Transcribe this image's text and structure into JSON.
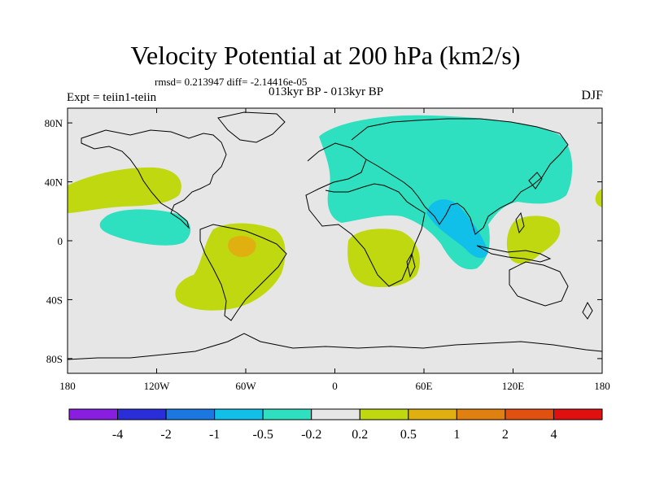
{
  "title": "Velocity Potential at 200 hPa (km2/s)",
  "stats": "rmsd= 0.213947  diff= -2.14416e-05",
  "experiment": "Expt = teiin1-teiin",
  "period": "013kyr BP - 013kyr BP",
  "season": "DJF",
  "map": {
    "lon_range": [
      -180,
      180
    ],
    "lat_range": [
      -90,
      90
    ],
    "lat_ticks": [
      {
        "value": 80,
        "label": "80N"
      },
      {
        "value": 40,
        "label": "40N"
      },
      {
        "value": 0,
        "label": "0"
      },
      {
        "value": -40,
        "label": "40S"
      },
      {
        "value": -80,
        "label": "80S"
      }
    ],
    "lon_ticks": [
      {
        "value": -180,
        "label": "180"
      },
      {
        "value": -120,
        "label": "120W"
      },
      {
        "value": -60,
        "label": "60W"
      },
      {
        "value": 0,
        "label": "0"
      },
      {
        "value": 60,
        "label": "60E"
      },
      {
        "value": 120,
        "label": "120E"
      },
      {
        "value": 180,
        "label": "180"
      }
    ],
    "background_color": "#e6e6e6"
  },
  "colorbar": {
    "colors": [
      "#8a1ee0",
      "#2a2ed8",
      "#1a78e0",
      "#10c0e8",
      "#2ee0c0",
      "#e6e6e6",
      "#c0d810",
      "#e0b010",
      "#e08010",
      "#e05010",
      "#e01010"
    ],
    "labels": [
      "-4",
      "-2",
      "-1",
      "-0.5",
      "-0.2",
      "0.2",
      "0.5",
      "1",
      "2",
      "4"
    ]
  }
}
